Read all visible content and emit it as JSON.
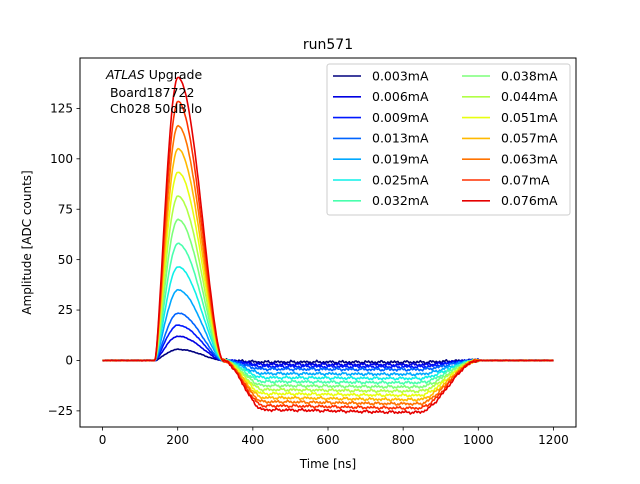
{
  "chart_data": {
    "type": "line",
    "title": "run571",
    "xlabel": "Time [ns]",
    "ylabel": "Amplitude [ADC counts]",
    "xlim": [
      -60,
      1260
    ],
    "ylim": [
      -33,
      150
    ],
    "xticks": [
      0,
      200,
      400,
      600,
      800,
      1000,
      1200
    ],
    "yticks": [
      -25,
      0,
      25,
      50,
      75,
      100,
      125
    ],
    "legend_position": "top-right",
    "legend_columns": 2,
    "annotation": {
      "italic": "ATLAS",
      "upright": " Upgrade",
      "line2": " Board187722",
      "line3": " Ch028 50dB lo"
    },
    "pulse_shape": {
      "time_range_ns": [
        0,
        1200
      ],
      "rise_start_ns": 140,
      "peak_ns": 200,
      "zero_crossing_ns": 320,
      "undershoot_end_ns": 840,
      "recovery_end_ns": 1000
    },
    "series": [
      {
        "name": "0.003mA",
        "color": "#00007f",
        "peak": 5.5,
        "undershoot": -0.8
      },
      {
        "name": "0.006mA",
        "color": "#0000e2",
        "peak": 12,
        "undershoot": -2
      },
      {
        "name": "0.009mA",
        "color": "#0018ff",
        "peak": 17.5,
        "undershoot": -3
      },
      {
        "name": "0.013mA",
        "color": "#0064ff",
        "peak": 23.5,
        "undershoot": -4.3
      },
      {
        "name": "0.019mA",
        "color": "#00a8ff",
        "peak": 35,
        "undershoot": -6.5
      },
      {
        "name": "0.025mA",
        "color": "#0ff0e8",
        "peak": 46.5,
        "undershoot": -8.5
      },
      {
        "name": "0.032mA",
        "color": "#49ffad",
        "peak": 58,
        "undershoot": -10.5
      },
      {
        "name": "0.038mA",
        "color": "#7dff7a",
        "peak": 70,
        "undershoot": -12.5
      },
      {
        "name": "0.044mA",
        "color": "#b1ff46",
        "peak": 81.5,
        "undershoot": -14.5
      },
      {
        "name": "0.051mA",
        "color": "#e8ff0f",
        "peak": 93.5,
        "undershoot": -16.5
      },
      {
        "name": "0.057mA",
        "color": "#ffb900",
        "peak": 105,
        "undershoot": -18.5
      },
      {
        "name": "0.063mA",
        "color": "#ff7300",
        "peak": 116.5,
        "undershoot": -20.5
      },
      {
        "name": "0.07mA",
        "color": "#ff3000",
        "peak": 128.5,
        "undershoot": -22.5
      },
      {
        "name": "0.076mA",
        "color": "#e50000",
        "peak": 140.5,
        "undershoot": -24.5
      }
    ]
  }
}
